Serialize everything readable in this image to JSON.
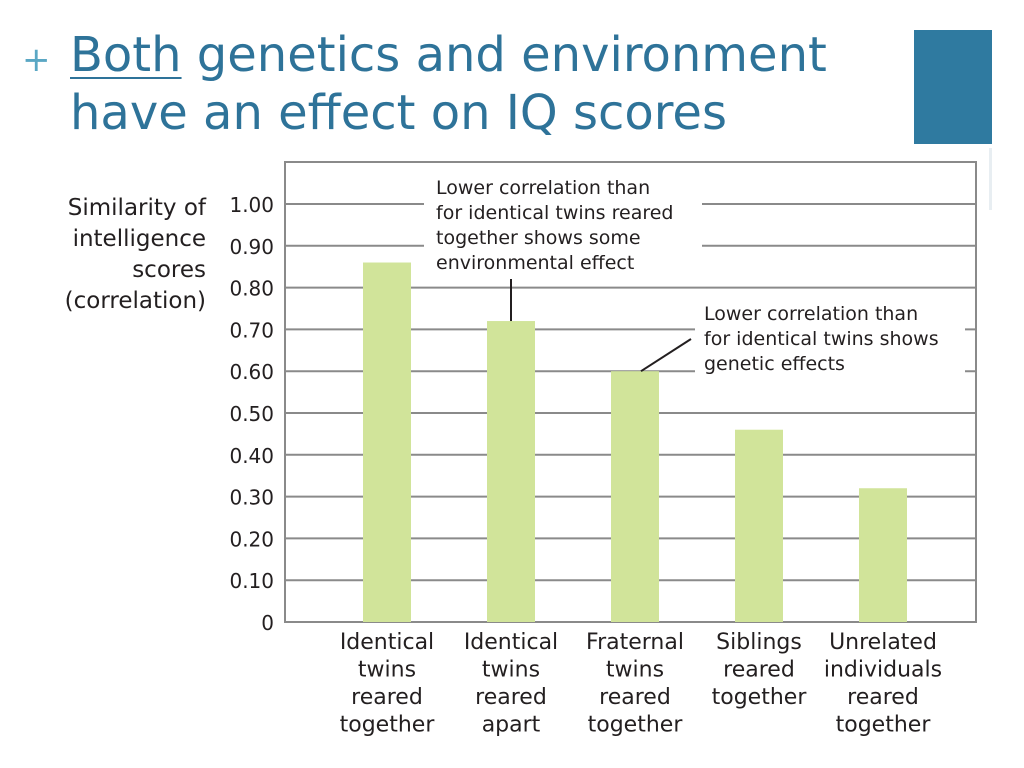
{
  "slide": {
    "plus_symbol": "+",
    "title_underlined": "Both",
    "title_rest_line1": " genetics and environment",
    "title_line2": "have an effect on IQ scores",
    "accent_color": "#2f7aa0"
  },
  "chart_data": {
    "type": "bar",
    "categories": [
      [
        "Identical",
        "twins",
        "reared",
        "together"
      ],
      [
        "Identical",
        "twins",
        "reared",
        "apart"
      ],
      [
        "Fraternal",
        "twins",
        "reared",
        "together"
      ],
      [
        "Siblings",
        "reared",
        "together"
      ],
      [
        "Unrelated",
        "individuals",
        "reared",
        "together"
      ]
    ],
    "values": [
      0.86,
      0.72,
      0.6,
      0.46,
      0.32
    ],
    "ylabel": [
      "Similarity of",
      "intelligence",
      "scores",
      "(correlation)"
    ],
    "yticks": [
      "0",
      "0.10",
      "0.20",
      "0.30",
      "0.40",
      "0.50",
      "0.60",
      "0.70",
      "0.80",
      "0.90",
      "1.00"
    ],
    "ylim": [
      0,
      1.1
    ],
    "grid": true,
    "bar_color": "#d1e49a",
    "grid_color": "#8a8a8a",
    "annotations": [
      {
        "lines": [
          "Lower correlation than",
          "for identical twins reared",
          "together shows some",
          "environmental effect"
        ],
        "target_category_index": 1
      },
      {
        "lines": [
          "Lower correlation than",
          "for identical twins shows",
          "genetic effects"
        ],
        "target_category_index": 2
      }
    ]
  }
}
